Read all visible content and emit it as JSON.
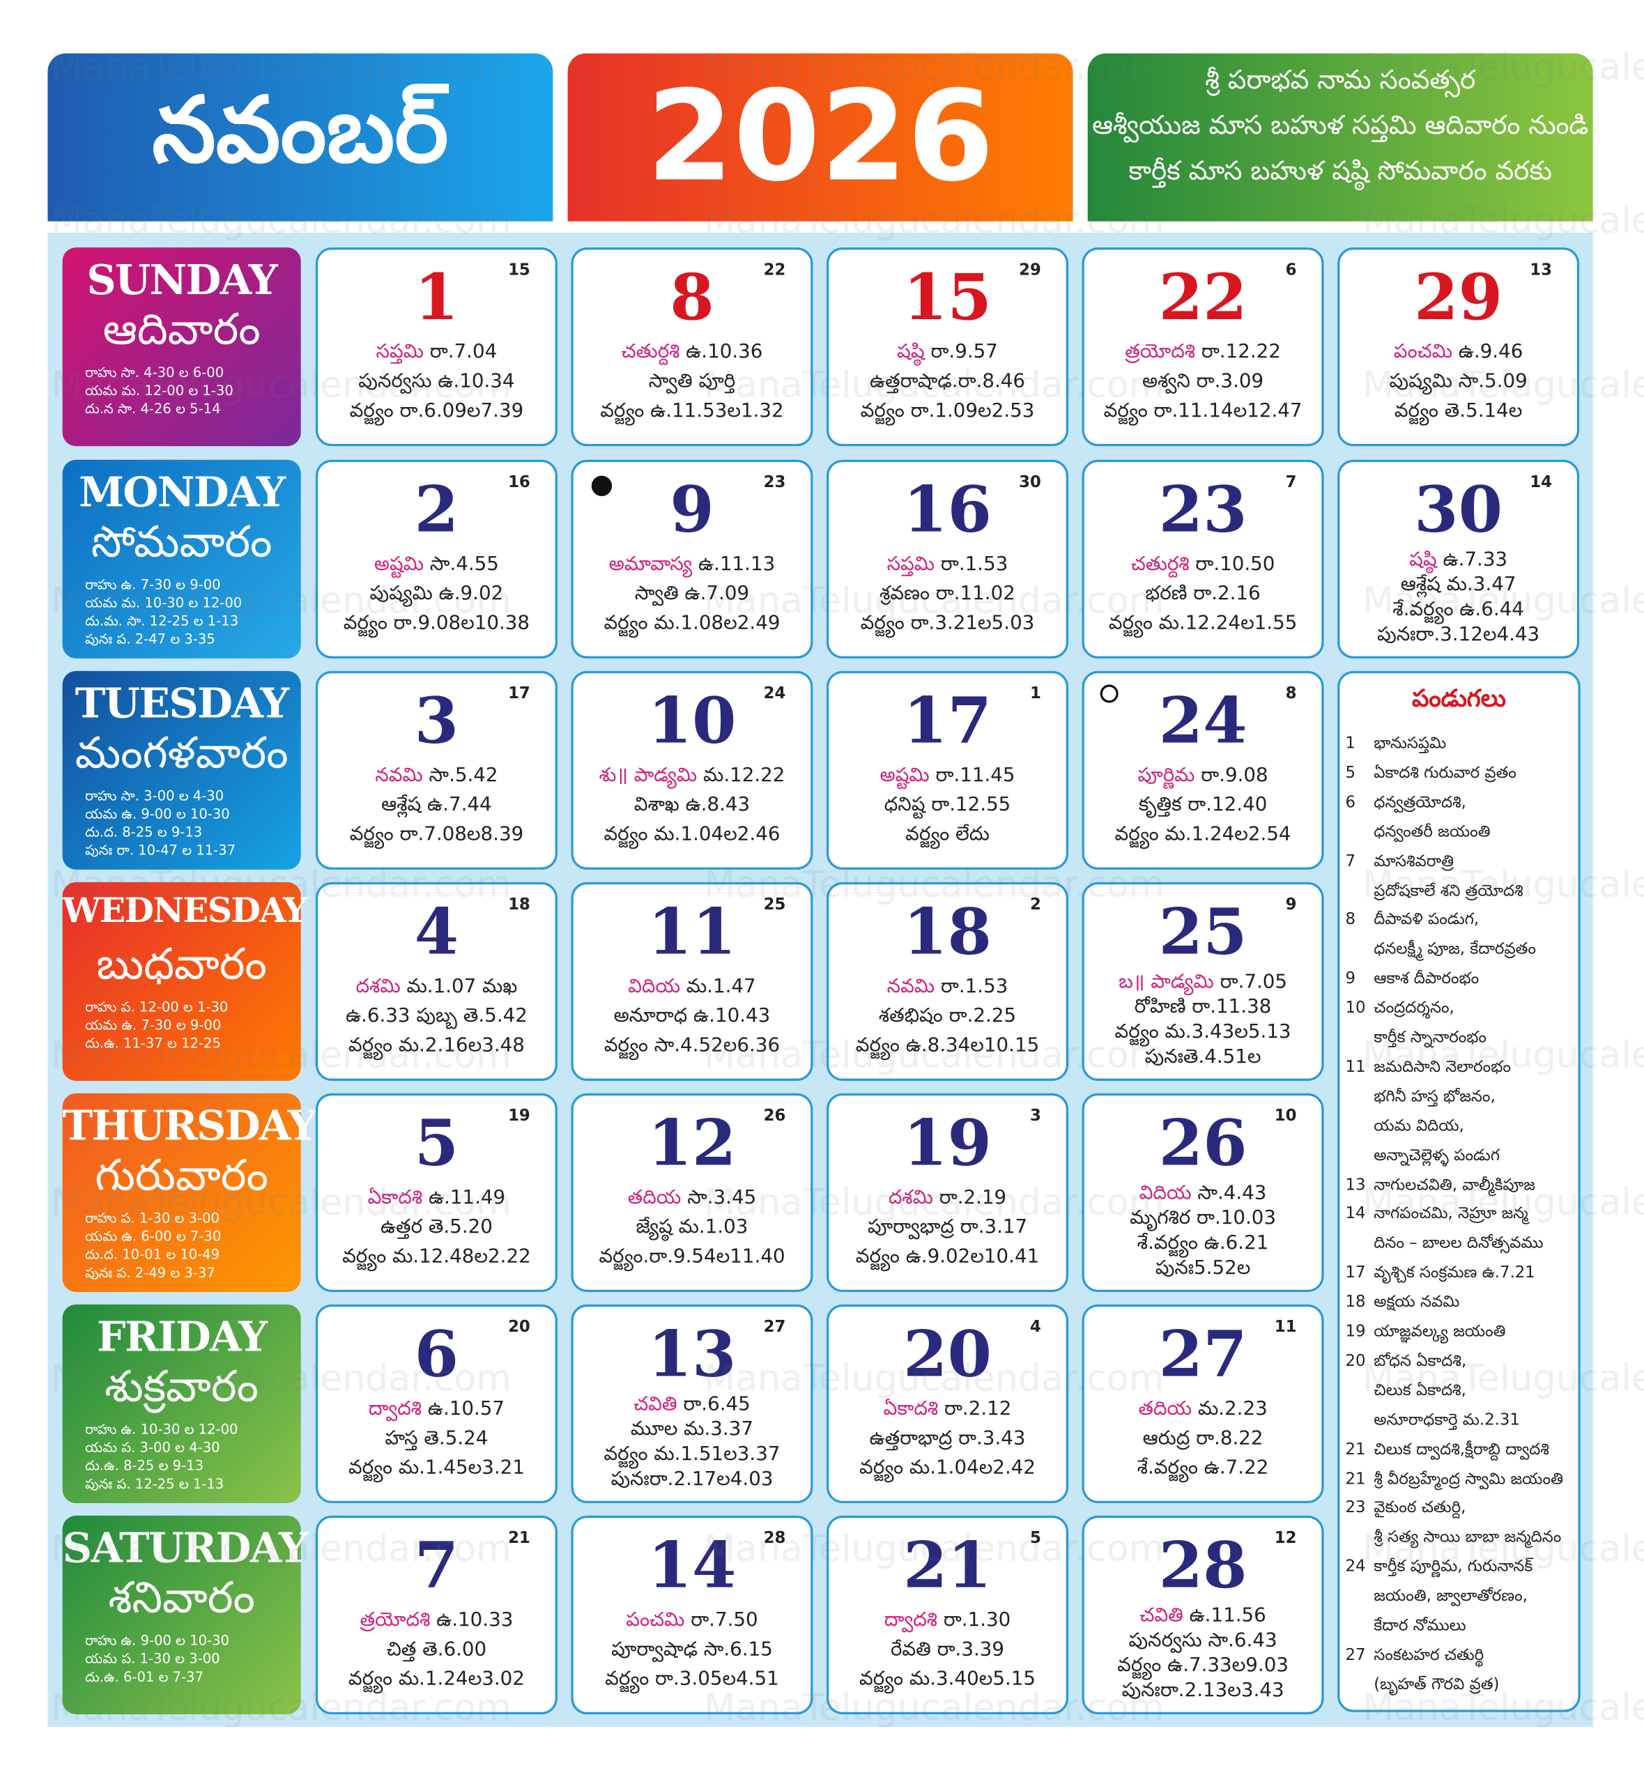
{
  "header": {
    "month": "నవంబర్",
    "year": "2026",
    "info": [
      "శ్రీ పరాభవ నామ సంవత్సర",
      "ఆశ్వీయుజ మాస బహుళ సప్తమి ఆదివారం నుండి",
      "కార్తీక మాస బహుళ షష్ఠి సోమవారం వరకు"
    ]
  },
  "watermark": "ManaTelugucalendar.com",
  "weekdays": [
    {
      "english": "SUNDAY",
      "telugu": "ఆదివారం",
      "timings": [
        "రాహు సా. 4-30 ల 6-00",
        "యమ మ. 12-00 ల 1-30",
        "దు.న సా. 4-26 ల 5-14"
      ]
    },
    {
      "english": "MONDAY",
      "telugu": "సోమవారం",
      "timings": [
        "రాహు ఉ. 7-30 ల 9-00",
        "యమ మ. 10-30 ల 12-00",
        "దు.మ. సా. 12-25 ల 1-13",
        "పునః ప. 2-47 ల 3-35"
      ]
    },
    {
      "english": "TUESDAY",
      "telugu": "మంగళవారం",
      "timings": [
        "రాహు సా. 3-00 ల 4-30",
        "యమ ఉ. 9-00 ల 10-30",
        "దు.ద. 8-25 ల 9-13",
        "పునః రా. 10-47 ల 11-37"
      ]
    },
    {
      "english": "WEDNESDAY",
      "telugu": "బుధవారం",
      "timings": [
        "రాహు ప. 12-00 ల 1-30",
        "యమ ఉ. 7-30 ల 9-00",
        "దు.ఉ. 11-37 ల 12-25"
      ]
    },
    {
      "english": "THURSDAY",
      "telugu": "గురువారం",
      "timings": [
        "రాహు ప. 1-30 ల 3-00",
        "యమ ఉ. 6-00 ల 7-30",
        "దు.ద. 10-01 ల 10-49",
        "పునః ప. 2-49 ల 3-37"
      ]
    },
    {
      "english": "FRIDAY",
      "telugu": "శుక్రవారం",
      "timings": [
        "రాహు ఉ. 10-30 ల 12-00",
        "యమ ప. 3-00 ల 4-30",
        "దు.ఉ. 8-25 ల 9-13",
        "పునః ప. 12-25 ల 1-13"
      ]
    },
    {
      "english": "SATURDAY",
      "telugu": "శనివారం",
      "timings": [
        "రాహు ఉ. 9-00 ల 10-30",
        "యమ ప. 1-30 ల 3-00",
        "దు.ఉ. 6-01 ల 7-37"
      ]
    }
  ],
  "days": [
    {
      "day": "1",
      "small": "15",
      "tithi": "సప్తమి",
      "tithi_time": "రా.7.04",
      "lines": [
        "పునర్వసు ఉ.10.34",
        "వర్జ్యం రా.6.09ల7.39"
      ]
    },
    {
      "day": "2",
      "small": "16",
      "tithi": "అష్టమి",
      "tithi_time": "సా.4.55",
      "lines": [
        "పుష్యమి ఉ.9.02",
        "వర్జ్యం రా.9.08ల10.38"
      ]
    },
    {
      "day": "3",
      "small": "17",
      "tithi": "నవమి",
      "tithi_time": "సా.5.42",
      "lines": [
        "ఆశ్లేష ఉ.7.44",
        "వర్జ్యం రా.7.08ల8.39"
      ]
    },
    {
      "day": "4",
      "small": "18",
      "tithi": "దశమి",
      "tithi_time": "మ.1.07 మఖ",
      "lines": [
        "ఉ.6.33 పుబ్బ తె.5.42",
        "వర్జ్యం మ.2.16ల3.48"
      ]
    },
    {
      "day": "5",
      "small": "19",
      "tithi": "ఏకాదశి",
      "tithi_time": "ఉ.11.49",
      "lines": [
        "ఉత్తర తె.5.20",
        "వర్జ్యం మ.12.48ల2.22"
      ]
    },
    {
      "day": "6",
      "small": "20",
      "tithi": "ద్వాదశి",
      "tithi_time": "ఉ.10.57",
      "lines": [
        "హస్త తె.5.24",
        "వర్జ్యం మ.1.45ల3.21"
      ]
    },
    {
      "day": "7",
      "small": "21",
      "tithi": "త్రయోదశి",
      "tithi_time": "ఉ.10.33",
      "lines": [
        "చిత్త తె.6.00",
        "వర్జ్యం మ.1.24ల3.02"
      ]
    },
    {
      "day": "8",
      "small": "22",
      "tithi": "చతుర్దశి",
      "tithi_time": "ఉ.10.36",
      "lines": [
        "స్వాతి పూర్తి",
        "వర్జ్యం ఉ.11.53ల1.32"
      ]
    },
    {
      "day": "9",
      "small": "23",
      "tithi": "అమావాస్య",
      "tithi_time": "ఉ.11.13",
      "lines": [
        "స్వాతి ఉ.7.09",
        "వర్జ్యం మ.1.08ల2.49"
      ]
    },
    {
      "day": "10",
      "small": "24",
      "tithi": "శు॥ పాడ్యమి",
      "tithi_time": "మ.12.22",
      "lines": [
        "విశాఖ ఉ.8.43",
        "వర్జ్యం మ.1.04ల2.46"
      ]
    },
    {
      "day": "11",
      "small": "25",
      "tithi": "విదియ",
      "tithi_time": "మ.1.47",
      "lines": [
        "అనూరాధ ఉ.10.43",
        "వర్జ్యం సా.4.52ల6.36"
      ]
    },
    {
      "day": "12",
      "small": "26",
      "tithi": "తదియ",
      "tithi_time": "సా.3.45",
      "lines": [
        "జ్యేష్ఠ మ.1.03",
        "వర్జ్యం.రా.9.54ల11.40"
      ]
    },
    {
      "day": "13",
      "small": "27",
      "tithi": "చవితి",
      "tithi_time": "రా.6.45",
      "lines": [
        "మూల మ.3.37",
        "వర్జ్యం మ.1.51ల3.37",
        "పునఃరా.2.17ల4.03"
      ]
    },
    {
      "day": "14",
      "small": "28",
      "tithi": "పంచమి",
      "tithi_time": "రా.7.50",
      "lines": [
        "పూర్వాషాఢ సా.6.15",
        "వర్జ్యం రా.3.05ల4.51"
      ]
    },
    {
      "day": "15",
      "small": "29",
      "tithi": "షష్ఠి",
      "tithi_time": "రా.9.57",
      "lines": [
        "ఉత్తరాషాఢ.రా.8.46",
        "వర్జ్యం రా.1.09ల2.53"
      ]
    },
    {
      "day": "16",
      "small": "30",
      "tithi": "సప్తమి",
      "tithi_time": "రా.1.53",
      "lines": [
        "శ్రవణం రా.11.02",
        "వర్జ్యం రా.3.21ల5.03"
      ]
    },
    {
      "day": "17",
      "small": "1",
      "tithi": "అష్టమి",
      "tithi_time": "రా.11.45",
      "lines": [
        "ధనిష్ట రా.12.55",
        "వర్జ్యం లేదు"
      ]
    },
    {
      "day": "18",
      "small": "2",
      "tithi": "నవమి",
      "tithi_time": "రా.1.53",
      "lines": [
        "శతభిషం రా.2.25",
        "వర్జ్యం ఉ.8.34ల10.15"
      ]
    },
    {
      "day": "19",
      "small": "3",
      "tithi": "దశమి",
      "tithi_time": "రా.2.19",
      "lines": [
        "పూర్వాభాద్ర రా.3.17",
        "వర్జ్యం ఉ.9.02ల10.41"
      ]
    },
    {
      "day": "20",
      "small": "4",
      "tithi": "ఏకాదశి",
      "tithi_time": "రా.2.12",
      "lines": [
        "ఉత్తరాభాద్ర రా.3.43",
        "వర్జ్యం మ.1.04ల2.42"
      ]
    },
    {
      "day": "21",
      "small": "5",
      "tithi": "ద్వాదశి",
      "tithi_time": "రా.1.30",
      "lines": [
        "రేవతి రా.3.39",
        "వర్జ్యం మ.3.40ల5.15"
      ]
    },
    {
      "day": "22",
      "small": "6",
      "tithi": "త్రయోదశి",
      "tithi_time": "రా.12.22",
      "lines": [
        "అశ్వని రా.3.09",
        "వర్జ్యం రా.11.14ల12.47"
      ]
    },
    {
      "day": "23",
      "small": "7",
      "tithi": "చతుర్దశి",
      "tithi_time": "రా.10.50",
      "lines": [
        "భరణి రా.2.16",
        "వర్జ్యం మ.12.24ల1.55"
      ]
    },
    {
      "day": "24",
      "small": "8",
      "tithi": "పూర్ణిమ",
      "tithi_time": "రా.9.08",
      "lines": [
        "కృత్తిక రా.12.40",
        "వర్జ్యం మ.1.24ల2.54"
      ]
    },
    {
      "day": "25",
      "small": "9",
      "tithi": "బ॥ పాడ్యమి",
      "tithi_time": "రా.7.05",
      "lines": [
        "రోహిణి రా.11.38",
        "వర్జ్యం మ.3.43ల5.13",
        "పునఃతె.4.51ల"
      ]
    },
    {
      "day": "26",
      "small": "10",
      "tithi": "విదియ",
      "tithi_time": "సా.4.43",
      "lines": [
        "మృగశిర రా.10.03",
        "శే.వర్జ్యం ఉ.6.21",
        "పునః5.52ల"
      ]
    },
    {
      "day": "27",
      "small": "11",
      "tithi": "తదియ",
      "tithi_time": "మ.2.23",
      "lines": [
        "ఆరుద్ర రా.8.22",
        "శే.వర్జ్యం ఉ.7.22"
      ]
    },
    {
      "day": "28",
      "small": "12",
      "tithi": "చవితి",
      "tithi_time": "ఉ.11.56",
      "lines": [
        "పునర్వసు సా.6.43",
        "వర్జ్యం ఉ.7.33ల9.03",
        "పునఃరా.2.13ల3.43"
      ]
    },
    {
      "day": "29",
      "small": "13",
      "tithi": "పంచమి",
      "tithi_time": "ఉ.9.46",
      "lines": [
        "పుష్యమి సా.5.09",
        "వర్జ్యం తె.5.14ల"
      ]
    },
    {
      "day": "30",
      "small": "14",
      "tithi": "షష్ఠి",
      "tithi_time": "ఉ.7.33",
      "lines": [
        "ఆశ్లేష మ.3.47",
        "శే.వర్జ్యం ఉ.6.44",
        "పునఃరా.3.12ల4.43"
      ]
    }
  ],
  "festivals": {
    "title": "పండుగలు",
    "items": [
      {
        "date": "1",
        "lines": [
          "భానుసప్తమి"
        ]
      },
      {
        "date": "5",
        "lines": [
          "ఏకాదశి గురువార వ్రతం"
        ]
      },
      {
        "date": "6",
        "lines": [
          "ధన్వత్రయోదశి,",
          "ధన్వంతరీ జయంతి"
        ]
      },
      {
        "date": "7",
        "lines": [
          "మాసశివరాత్రి",
          "ప్రదోషకాలే శని త్రయోదశి"
        ]
      },
      {
        "date": "8",
        "lines": [
          "దీపావళి పండుగ,",
          "ధనలక్ష్మీ పూజ, కేదారవ్రతం"
        ]
      },
      {
        "date": "9",
        "lines": [
          "ఆకాశ దీపారంభం"
        ]
      },
      {
        "date": "10",
        "lines": [
          "చంద్రదర్శనం,",
          "కార్తీక స్నానారంభం"
        ]
      },
      {
        "date": "11",
        "lines": [
          "జమదిసాని నెలారంభం",
          "భగినీ హస్త భోజనం,",
          "యమ విదియ,",
          "అన్నాచెల్లెళ్ళ పండుగ"
        ]
      },
      {
        "date": "13",
        "lines": [
          "నాగులచవితి, వాల్మీకిపూజ"
        ]
      },
      {
        "date": "14",
        "lines": [
          "నాగపంచమి, నెహ్రూ జన్మ",
          "దినం – బాలల దినోత్సవము"
        ]
      },
      {
        "date": "17",
        "lines": [
          "వృశ్చిక సంక్రమణ ఉ.7.21"
        ]
      },
      {
        "date": "18",
        "lines": [
          "అక్షయ నవమి"
        ]
      },
      {
        "date": "19",
        "lines": [
          "యాజ్ఞవల్క్య జయంతి"
        ]
      },
      {
        "date": "20",
        "lines": [
          "బోధన ఏకాదశి,",
          "చిలుక ఏకాదశి,",
          "అనూరాధకార్తె మ.2.31"
        ]
      },
      {
        "date": "21",
        "lines": [
          "చిలుక ద్వాదశి,క్షీరాబ్ది ద్వాదశి"
        ]
      },
      {
        "date": "21",
        "lines": [
          "శ్రీ వీరబ్రహ్మేంద్ర స్వామి జయంతి"
        ]
      },
      {
        "date": "23",
        "lines": [
          "వైకుంఠ చతుర్ది,",
          "శ్రీ సత్య సాయి బాబా జన్మదినం"
        ]
      },
      {
        "date": "24",
        "lines": [
          "కార్తీక పూర్ణిమ, గురునానక్",
          "జయంతి, జ్వాలాతోరణం,",
          "కేదార నోములు"
        ]
      },
      {
        "date": "27",
        "lines": [
          "సంకటహర చతుర్థి",
          "(బృహత్ గౌరవి వ్రత)"
        ]
      }
    ]
  }
}
